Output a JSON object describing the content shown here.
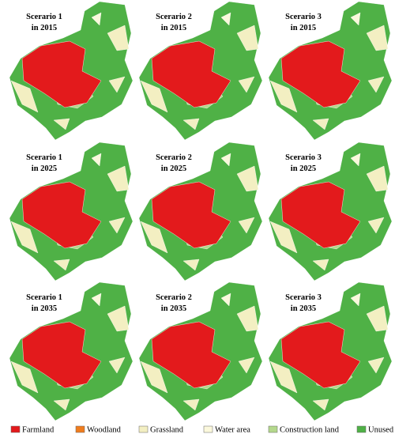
{
  "panels": [
    {
      "scenario": "Scerario 1",
      "year": "in 2015"
    },
    {
      "scenario": "Scerario 2",
      "year": "in 2015"
    },
    {
      "scenario": "Scerario 3",
      "year": "in 2015"
    },
    {
      "scenario": "Scerario 1",
      "year": "in 2025"
    },
    {
      "scenario": "Scerario 2",
      "year": "in 2025"
    },
    {
      "scenario": "Scerario 3",
      "year": "in 2025"
    },
    {
      "scenario": "Scerario 1",
      "year": "in 2035"
    },
    {
      "scenario": "Scerario 2",
      "year": "in 2035"
    },
    {
      "scenario": "Scerario 3",
      "year": "in 2035"
    }
  ],
  "legend": [
    {
      "label": "Farmland",
      "color": "#e31a1c"
    },
    {
      "label": "Woodland",
      "color": "#f07d1e"
    },
    {
      "label": "Grassland",
      "color": "#f3efc2"
    },
    {
      "label": "Water area",
      "color": "#fbf8dc"
    },
    {
      "label": "Construction land",
      "color": "#b4d88c"
    },
    {
      "label": "Unused land",
      "color": "#4fb146"
    }
  ]
}
